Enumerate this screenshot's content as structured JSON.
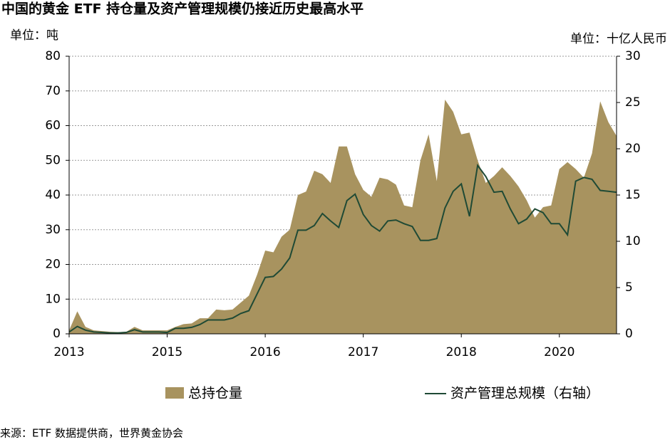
{
  "chart_data": {
    "type": "area-line",
    "title": "中国的黄金 ETF 持仓量及资产管理规模仍接近历史最高水平",
    "y_unit": "单位：吨",
    "y2_unit": "单位：十亿人民币",
    "source": "来源：ETF 数据提供商，世界黄金协会",
    "categories": [
      "2013",
      null,
      null,
      null,
      null,
      null,
      null,
      null,
      null,
      null,
      null,
      null,
      "2015",
      null,
      null,
      null,
      null,
      null,
      null,
      null,
      null,
      null,
      null,
      null,
      "2016",
      null,
      null,
      null,
      null,
      null,
      null,
      null,
      null,
      null,
      null,
      null,
      "2017",
      null,
      null,
      null,
      null,
      null,
      null,
      null,
      null,
      null,
      null,
      null,
      "2018",
      null,
      null,
      null,
      null,
      null,
      null,
      null,
      null,
      null,
      null,
      null,
      "2020",
      null,
      null,
      null,
      null,
      null,
      null,
      null
    ],
    "series": [
      {
        "name": "总持仓量",
        "color": "#a8935f",
        "axis": "y",
        "values": [
          1,
          6.5,
          2,
          1,
          0.8,
          0.6,
          0.5,
          0.6,
          2,
          1,
          1,
          1,
          1,
          2,
          2.8,
          3,
          4.5,
          4.5,
          7,
          6.8,
          7,
          9,
          11,
          17,
          24,
          23.5,
          28,
          30,
          40,
          41,
          47,
          46,
          43.5,
          54,
          54,
          46,
          41.5,
          39.5,
          45,
          44.5,
          43,
          37,
          36.5,
          50,
          57.5,
          44,
          67.5,
          64,
          57.5,
          58,
          50,
          43.5,
          45.5,
          48,
          45.5,
          42.5,
          38.5,
          33.5,
          36.5,
          37,
          47.5,
          49.5,
          47.5,
          45,
          52,
          67,
          61,
          57
        ]
      },
      {
        "name": "资产管理总规模（右轴）",
        "color": "#1f4a35",
        "axis": "y2",
        "values": [
          0.2,
          0.8,
          0.4,
          0.2,
          0.15,
          0.1,
          0.1,
          0.15,
          0.45,
          0.2,
          0.2,
          0.2,
          0.15,
          0.6,
          0.6,
          0.7,
          1,
          1.5,
          1.5,
          1.5,
          1.7,
          2.2,
          2.5,
          4.3,
          6.1,
          6.2,
          7,
          8.2,
          11.2,
          11.2,
          11.7,
          13,
          12.2,
          11.5,
          14.4,
          15.1,
          12.9,
          11.7,
          11.1,
          12.2,
          12.3,
          11.9,
          11.6,
          10.1,
          10.1,
          10.3,
          13.6,
          15.4,
          16.2,
          12.7,
          18.2,
          17,
          15.3,
          15.4,
          13.5,
          11.9,
          12.4,
          13.5,
          13.1,
          11.9,
          11.9,
          10.7,
          16.5,
          16.9,
          16.7,
          15.5,
          15.4,
          15.3
        ]
      }
    ],
    "ylim": [
      0,
      80
    ],
    "yticks": [
      0,
      10,
      20,
      30,
      40,
      50,
      60,
      70,
      80
    ],
    "y2lim": [
      0,
      30
    ],
    "y2ticks": [
      0,
      5,
      10,
      15,
      20,
      25,
      30
    ],
    "grid": true
  }
}
